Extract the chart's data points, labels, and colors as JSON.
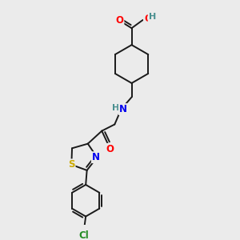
{
  "bg_color": "#ebebeb",
  "bond_color": "#1a1a1a",
  "atom_colors": {
    "O": "#ff0000",
    "N": "#0000ee",
    "S": "#ccaa00",
    "Cl": "#228b22",
    "H": "#4a9090",
    "C": "#1a1a1a"
  },
  "font_size": 8.5,
  "bond_width": 1.4,
  "dbo": 0.1
}
